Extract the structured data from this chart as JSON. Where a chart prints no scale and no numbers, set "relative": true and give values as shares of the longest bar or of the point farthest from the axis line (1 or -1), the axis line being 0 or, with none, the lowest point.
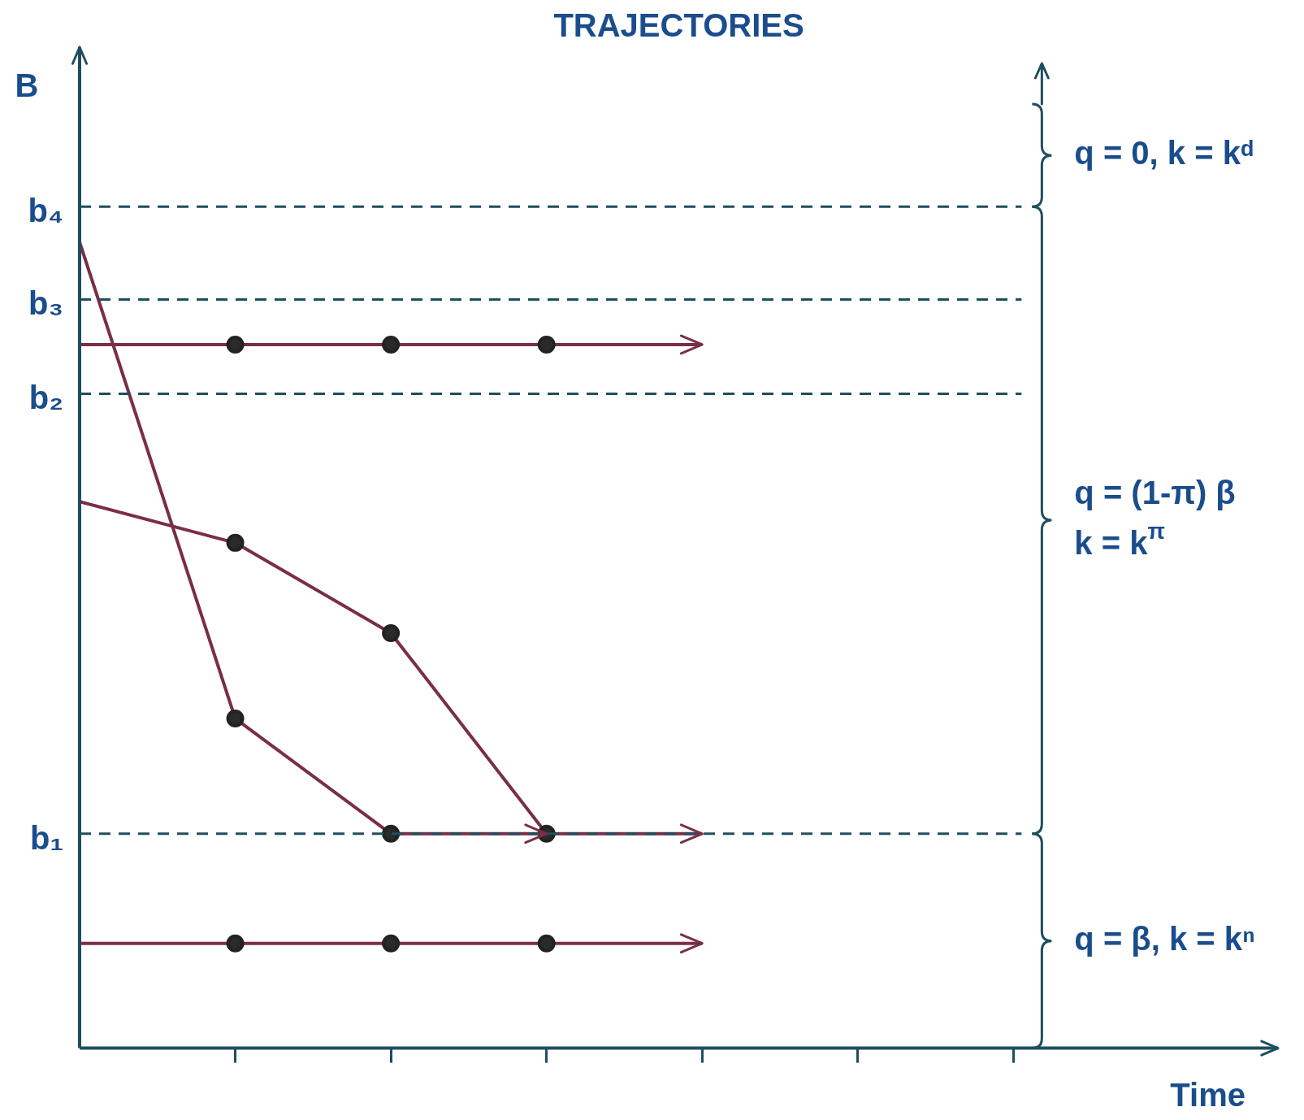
{
  "chart_data": {
    "type": "line",
    "title": "TRAJECTORIES",
    "xlabel": "Time",
    "ylabel": "B",
    "relative": true,
    "marker": "circle",
    "legend": false,
    "grid": false,
    "categories": [
      null,
      null,
      null,
      null,
      null,
      null,
      null
    ],
    "series": [
      {
        "color": "#7a2e45",
        "values": [
          0.873,
          0.873,
          0.873,
          0.873,
          0.873,
          null,
          null
        ]
      },
      {
        "color": "#7a2e45",
        "values": [
          1,
          0.409,
          0.266,
          0.266,
          null,
          null,
          null
        ]
      },
      {
        "color": "#7a2e45",
        "values": [
          0.678,
          0.627,
          0.515,
          0.266,
          0.266,
          null,
          null
        ]
      },
      {
        "color": "#7a2e45",
        "values": [
          0.13,
          0.13,
          0.13,
          0.13,
          0.13,
          null,
          null
        ]
      }
    ],
    "ref_lines": [
      {
        "axis": "y",
        "value": 1.044,
        "label": "b₄",
        "color": "#1f4e5f",
        "line_style": "dashed"
      },
      {
        "axis": "y",
        "value": 0.929,
        "label": "b₃",
        "color": "#1f4e5f",
        "line_style": "dashed"
      },
      {
        "axis": "y",
        "value": 0.812,
        "label": "b₂",
        "color": "#1f4e5f",
        "line_style": "dashed"
      },
      {
        "axis": "y",
        "value": 0.266,
        "label": "b₁",
        "color": "#1f4e5f",
        "line_style": "dashed"
      }
    ],
    "annotations": [
      "q = 0, k = kᵈ",
      "q = (1-π) β",
      "k = k$^{π}$",
      "q = β, k = kⁿ"
    ]
  }
}
